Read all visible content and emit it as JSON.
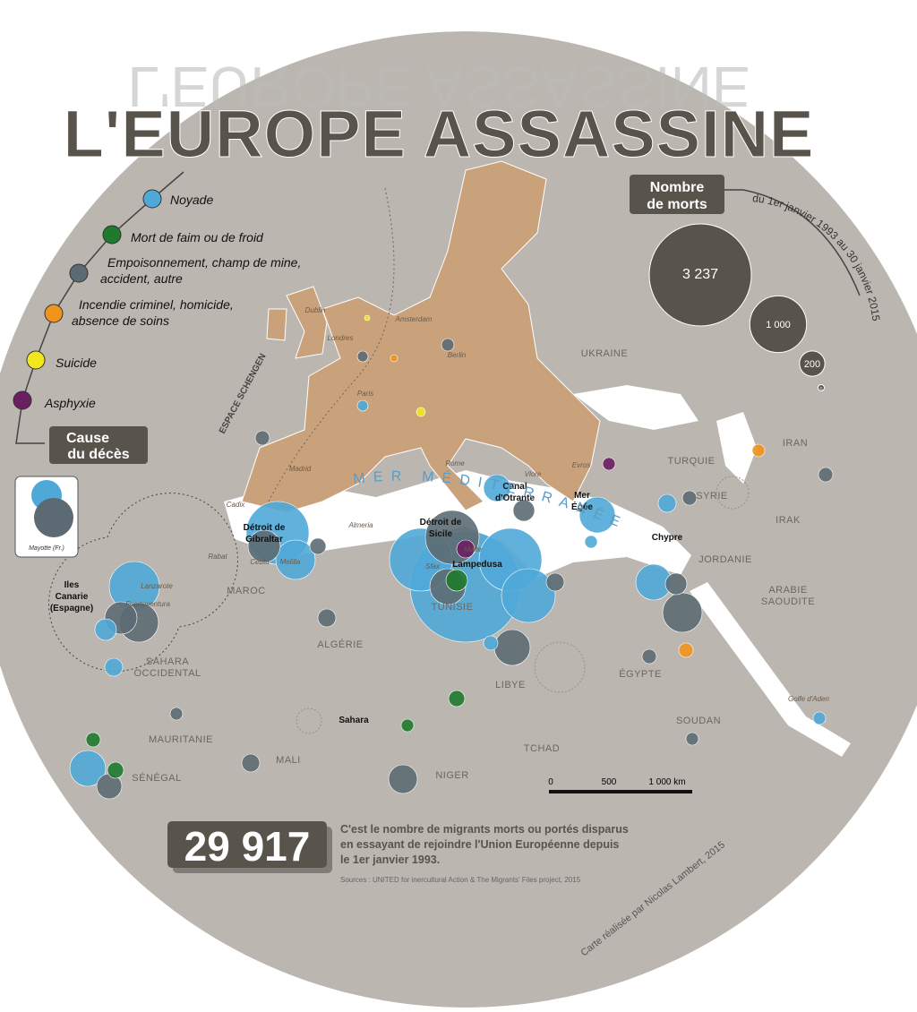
{
  "title": "L'EUROPE ASSASSINE",
  "cause_legend": {
    "title_lines": [
      "Cause",
      "du décès"
    ],
    "items": [
      {
        "label": "Noyade",
        "color": "#4fa9d8"
      },
      {
        "label": "Mort de faim ou de froid",
        "color": "#1f7a2e"
      },
      {
        "label": "Empoisonnement, champ de mine, accident, autre",
        "color": "#5c6b73"
      },
      {
        "label": "Incendie criminel, homicide, absence de soins",
        "color": "#f0941e"
      },
      {
        "label": "Suicide",
        "color": "#f2e61e"
      },
      {
        "label": "Asphyxie",
        "color": "#6a1f63"
      }
    ]
  },
  "size_legend": {
    "title_lines": [
      "Nombre",
      "de morts"
    ],
    "period": "du 1er janvier 1993 au 30 janvier 2015",
    "items": [
      {
        "value": 3237,
        "label": "3 237"
      },
      {
        "value": 1000,
        "label": "1 000"
      },
      {
        "value": 200,
        "label": "200"
      },
      {
        "value": 5,
        "label": "5"
      }
    ]
  },
  "inset": "Mayotte (Fr.)",
  "zone": "ESPACE SCHENGEN",
  "sea": "MER MÉDITERRANÉE",
  "countries": [
    "UKRAINE",
    "TURQUIE",
    "IRAN",
    "SYRIE",
    "IRAK",
    "JORDANIE",
    "ARABIE SAOUDITE",
    "MAROC",
    "ALGÉRIE",
    "TUNISIE",
    "LIBYE",
    "ÉGYPTE",
    "SOUDAN",
    "TCHAD",
    "NIGER",
    "MALI",
    "MAURITANIE",
    "SÉNÉGAL",
    "SAHARA OCCIDENTAL"
  ],
  "cities": [
    "Dublin",
    "Londres",
    "Amsterdam",
    "Berlin",
    "Paris",
    "Madrid",
    "Rome",
    "Vlore",
    "Evros",
    "Cadix",
    "Almeria",
    "Rabat",
    "Ceuta",
    "Melilla",
    "Lanzarote",
    "Fuerteventura",
    "Malte",
    "Sfax",
    "Golfe d'Aden"
  ],
  "places": [
    "Détroit de Gibraltar",
    "Détroit de Sicile",
    "Canal d'Otrante",
    "Mer Égée",
    "Chypre",
    "Lampedusa",
    "Iles Canarie (Espagne)",
    "Sahara"
  ],
  "scale": {
    "ticks": [
      "0",
      "500",
      "1 000 km"
    ]
  },
  "total": {
    "number": "29 917",
    "text": "C'est le nombre de migrants morts ou portés disparus en essayant de rejoindre l'Union Européenne depuis le 1er janvier 1993.",
    "sources": "Sources : UNITED for inercultural Action & The Migrants' Files project, 2015"
  },
  "credit": "Carte réalisée par Nicolas Lambert, 2015"
}
